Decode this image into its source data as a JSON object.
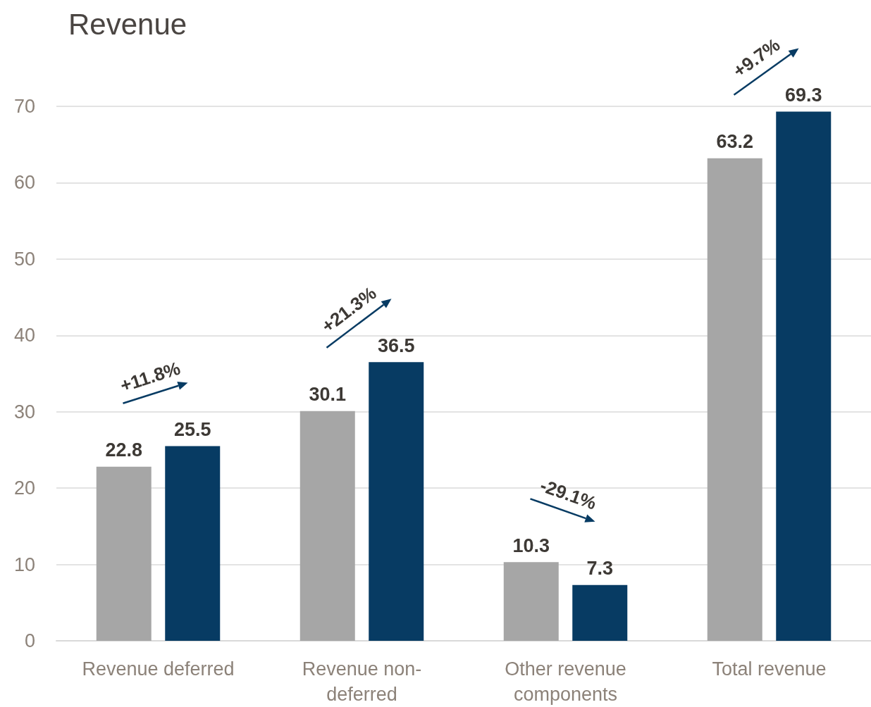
{
  "chart_data": {
    "type": "bar",
    "title": "Revenue",
    "categories": [
      "Revenue deferred",
      "Revenue non-deferred",
      "Other revenue components",
      "Total revenue"
    ],
    "series": [
      {
        "color": "#a6a6a6",
        "values": [
          22.8,
          30.1,
          10.3,
          63.2
        ]
      },
      {
        "color": "#073b63",
        "values": [
          25.5,
          36.5,
          7.3,
          69.3
        ]
      }
    ],
    "ylim": [
      0,
      70
    ],
    "yticks": [
      0,
      10,
      20,
      30,
      40,
      50,
      60,
      70
    ],
    "grid": "y",
    "data_labels": true,
    "annotations": [
      "+11.8%",
      "+21.3%",
      "-29.1%",
      "+9.7%"
    ]
  }
}
